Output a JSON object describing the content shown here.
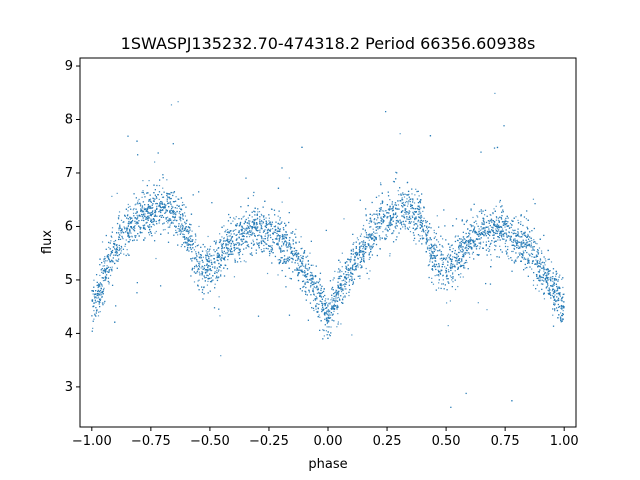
{
  "chart_data": {
    "type": "scatter",
    "title": "1SWASPJ135232.70-474318.2 Period 66356.60938s",
    "xlabel": "phase",
    "ylabel": "flux",
    "xlim": [
      -1.05,
      1.05
    ],
    "ylim": [
      2.25,
      9.15
    ],
    "x_ticks": [
      -1.0,
      -0.75,
      -0.5,
      -0.25,
      0.0,
      0.25,
      0.5,
      0.75,
      1.0
    ],
    "x_tick_labels": [
      "−1.00",
      "−0.75",
      "−0.50",
      "−0.25",
      "0.00",
      "0.25",
      "0.50",
      "0.75",
      "1.00"
    ],
    "y_ticks": [
      3,
      4,
      5,
      6,
      7,
      8,
      9
    ],
    "y_tick_labels": [
      "3",
      "4",
      "5",
      "6",
      "7",
      "8",
      "9"
    ],
    "grid": false,
    "point_color": "#1f77b4",
    "series": [
      {
        "x": [
          -1.0,
          -0.95,
          -0.9,
          -0.85,
          -0.8,
          -0.75,
          -0.7,
          -0.65,
          -0.6,
          -0.55,
          -0.5,
          -0.45,
          -0.4,
          -0.35,
          -0.3,
          -0.25,
          -0.2,
          -0.15,
          -0.1,
          -0.05,
          0.0,
          0.05,
          0.1,
          0.15,
          0.2,
          0.25,
          0.3,
          0.35,
          0.4,
          0.45,
          0.5,
          0.55,
          0.6,
          0.65,
          0.7,
          0.75,
          0.8,
          0.85,
          0.9,
          0.95,
          1.0
        ],
        "y": [
          4.45,
          5.05,
          5.6,
          5.95,
          6.15,
          6.3,
          6.35,
          6.3,
          5.95,
          5.3,
          5.2,
          5.45,
          5.75,
          5.9,
          5.95,
          5.9,
          5.75,
          5.5,
          5.15,
          4.8,
          4.35,
          4.8,
          5.2,
          5.6,
          5.95,
          6.15,
          6.3,
          6.3,
          6.05,
          5.4,
          5.25,
          5.45,
          5.75,
          5.9,
          5.95,
          5.9,
          5.8,
          5.55,
          5.2,
          4.85,
          4.45
        ]
      }
    ]
  }
}
